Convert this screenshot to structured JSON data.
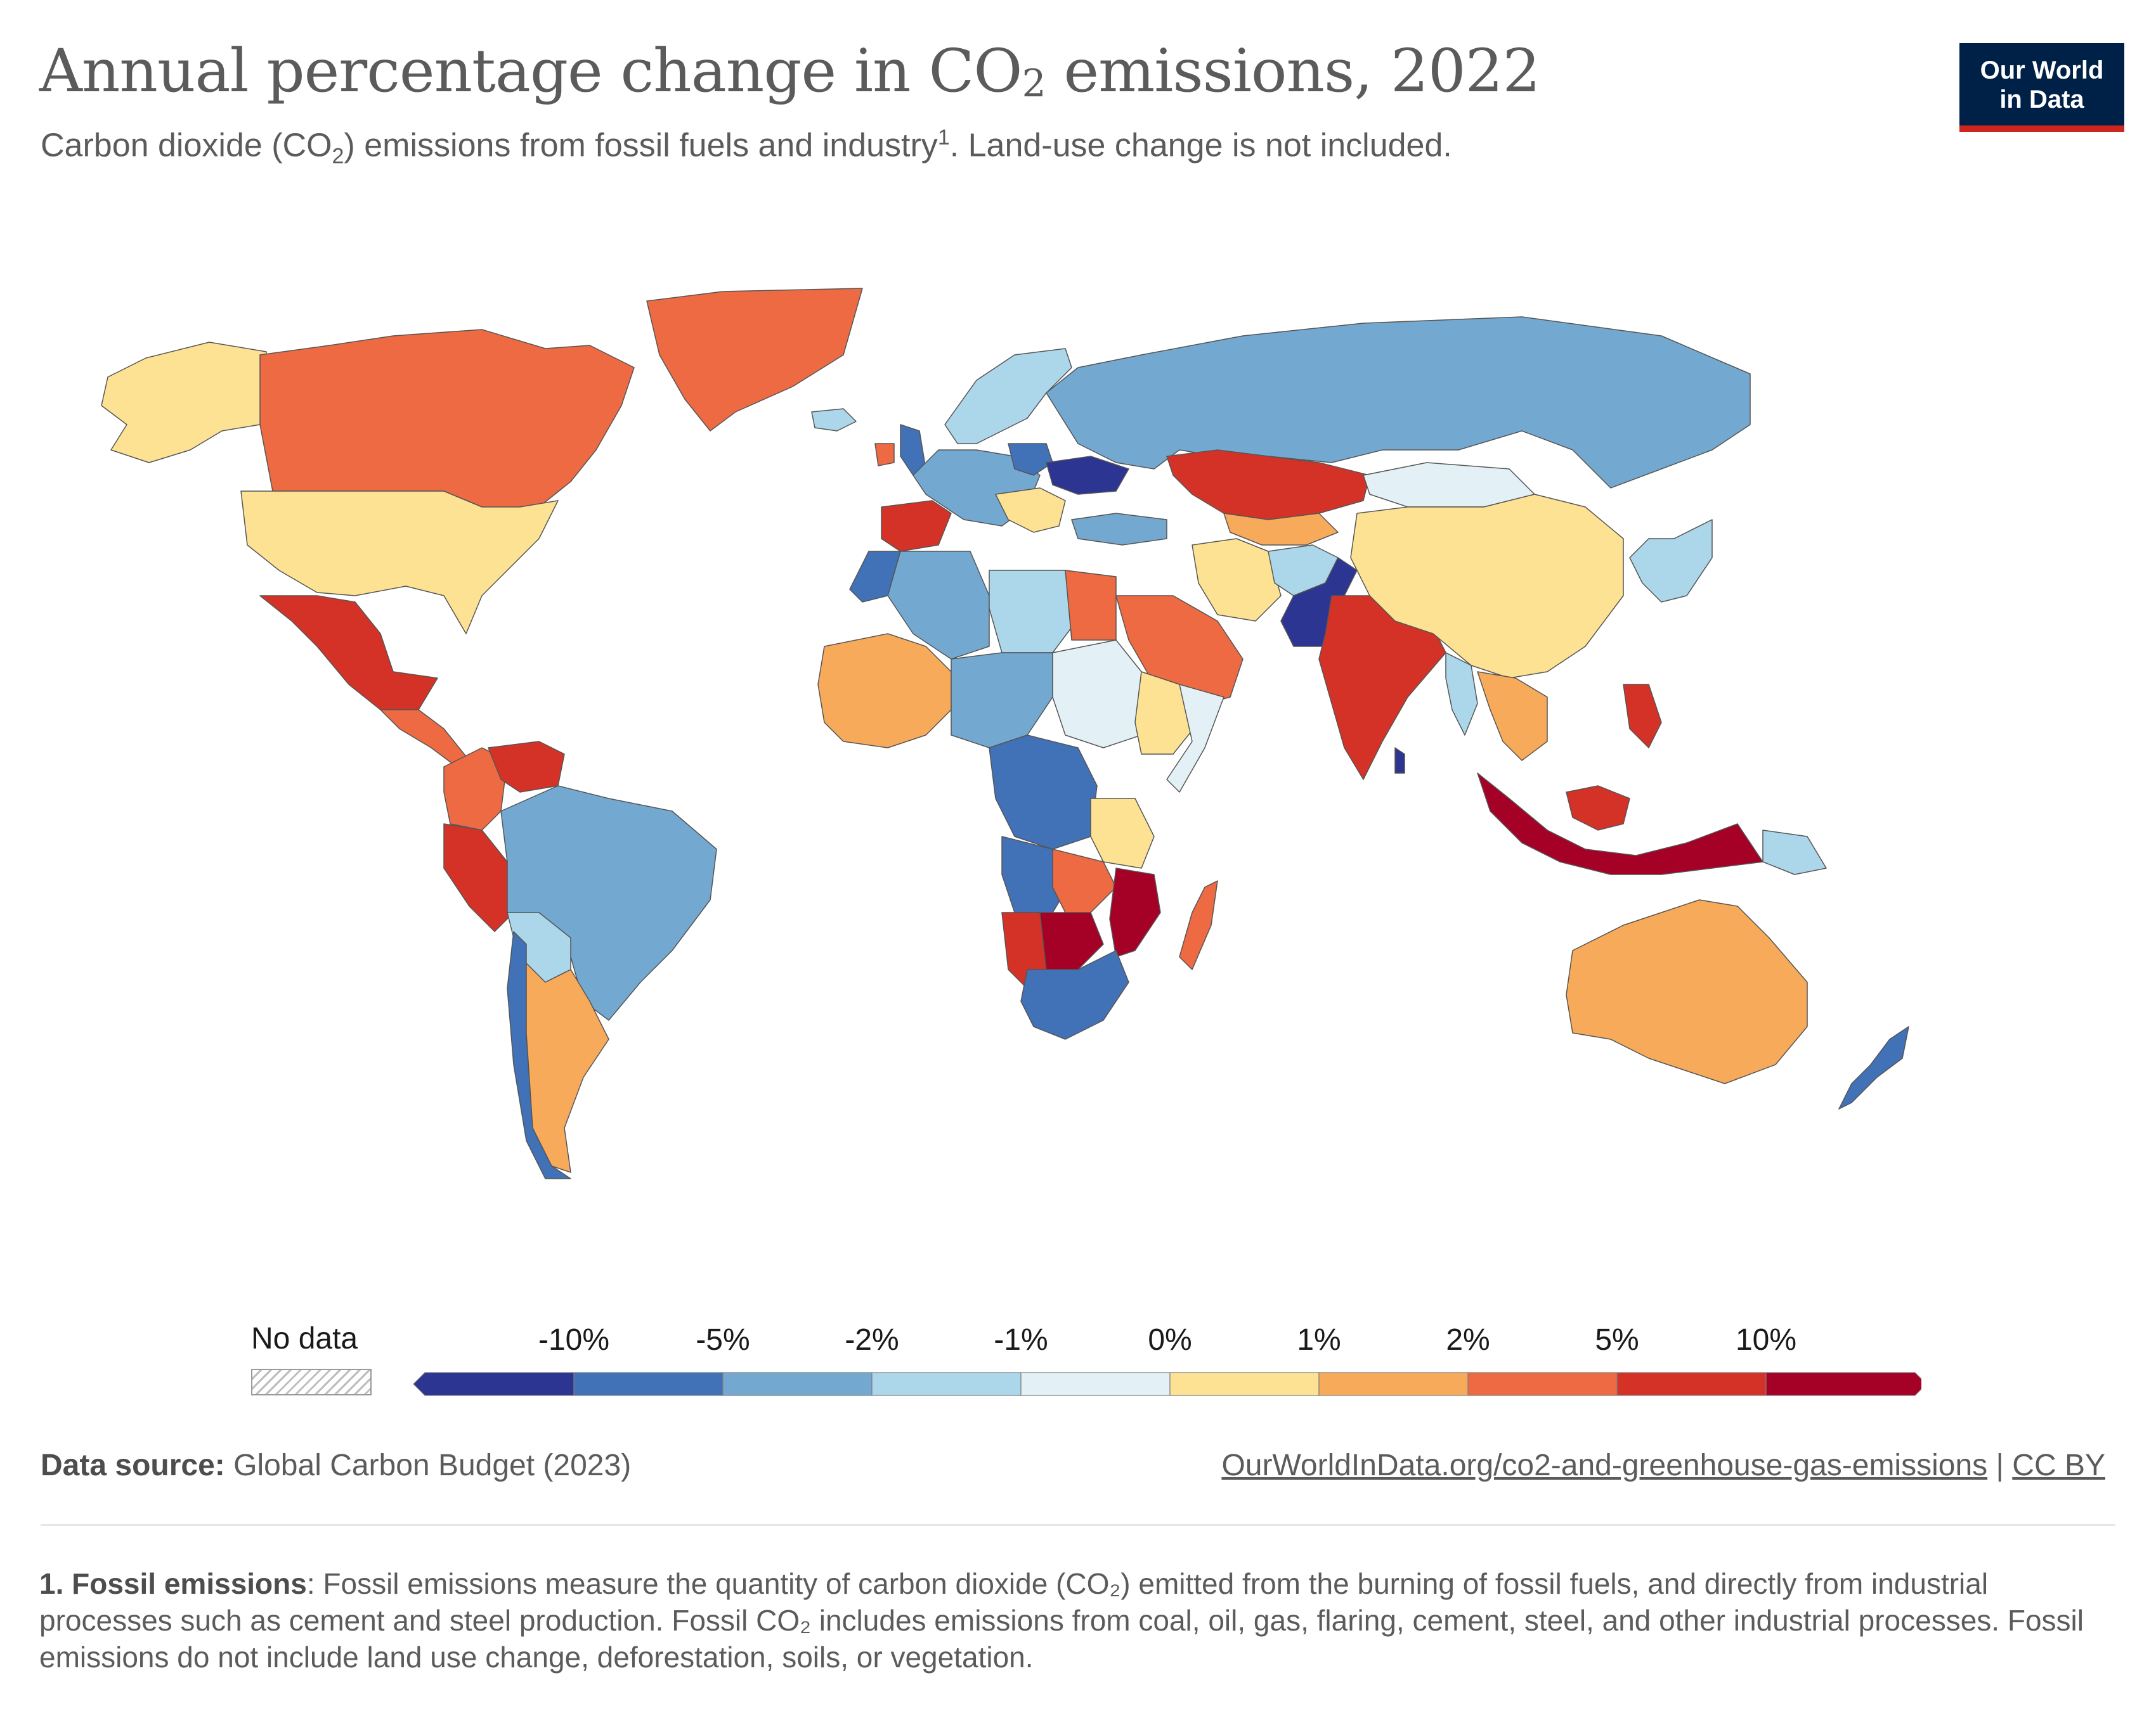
{
  "header": {
    "title_main": "Annual percentage change in CO",
    "title_sub": "2",
    "title_end": " emissions, 2022",
    "subtitle_a": "Carbon dioxide (CO",
    "subtitle_sub": "2",
    "subtitle_b": ") emissions from fossil fuels and industry",
    "subtitle_sup": "1",
    "subtitle_c": ". Land-use change is not included."
  },
  "logo": {
    "line1": "Our World",
    "line2": "in Data"
  },
  "colors": {
    "ocean": "#ffffff",
    "border": "#555555",
    "scale": [
      "#2c3592",
      "#4171b7",
      "#73a9d1",
      "#acd6ea",
      "#e3f1f7",
      "#fde293",
      "#f8aa5b",
      "#ee6a43",
      "#d53227",
      "#a50026"
    ]
  },
  "legend": {
    "no_data_label": "No data",
    "ticks": [
      "-10%",
      "-5%",
      "-2%",
      "-1%",
      "0%",
      "1%",
      "2%",
      "5%",
      "10%"
    ]
  },
  "footer": {
    "source_label": "Data source:",
    "source_text": " Global Carbon Budget (2023)",
    "link_text": "OurWorldInData.org/co2-and-greenhouse-gas-emissions",
    "separator": " | ",
    "license": "CC BY"
  },
  "footnote": {
    "label": "1. Fossil emissions",
    "text": ": Fossil emissions measure the quantity of carbon dioxide (CO₂) emitted from the burning of fossil fuels, and directly from industrial processes such as cement and steel production. Fossil CO₂ includes emissions from coal, oil, gas, flaring, cement, steel, and other industrial processes. Fossil emissions do not include land use change, deforestation, soils, or vegetation."
  },
  "regions": [
    {
      "name": "Alaska",
      "bin": 5
    },
    {
      "name": "Canada",
      "bin": 7
    },
    {
      "name": "Greenland",
      "bin": 7
    },
    {
      "name": "United States",
      "bin": 5
    },
    {
      "name": "Mexico",
      "bin": 8
    },
    {
      "name": "Central America",
      "bin": 7
    },
    {
      "name": "Colombia",
      "bin": 7
    },
    {
      "name": "Venezuela",
      "bin": 8
    },
    {
      "name": "Peru",
      "bin": 8
    },
    {
      "name": "Brazil",
      "bin": 2
    },
    {
      "name": "Bolivia",
      "bin": 3
    },
    {
      "name": "Chile",
      "bin": 1
    },
    {
      "name": "Argentina",
      "bin": 6
    },
    {
      "name": "Iceland",
      "bin": 3
    },
    {
      "name": "United Kingdom",
      "bin": 1
    },
    {
      "name": "Ireland",
      "bin": 7
    },
    {
      "name": "Scandinavia",
      "bin": 3
    },
    {
      "name": "Western Europe",
      "bin": 2
    },
    {
      "name": "Spain",
      "bin": 8
    },
    {
      "name": "Poland",
      "bin": 1
    },
    {
      "name": "Ukraine",
      "bin": 0
    },
    {
      "name": "Balkans",
      "bin": 5
    },
    {
      "name": "Russia",
      "bin": 2
    },
    {
      "name": "Turkey",
      "bin": 2
    },
    {
      "name": "Kazakhstan",
      "bin": 8
    },
    {
      "name": "Central Asia",
      "bin": 6
    },
    {
      "name": "Mongolia",
      "bin": 4
    },
    {
      "name": "Iran",
      "bin": 5
    },
    {
      "name": "Arabian Peninsula",
      "bin": 7
    },
    {
      "name": "Afghanistan",
      "bin": 3
    },
    {
      "name": "Pakistan",
      "bin": 0
    },
    {
      "name": "India",
      "bin": 8
    },
    {
      "name": "China",
      "bin": 5
    },
    {
      "name": "Korea and Japan",
      "bin": 3
    },
    {
      "name": "Myanmar",
      "bin": 3
    },
    {
      "name": "Mainland Southeast Asia",
      "bin": 6
    },
    {
      "name": "Philippines",
      "bin": 8
    },
    {
      "name": "Malaysia and Borneo",
      "bin": 8
    },
    {
      "name": "Indonesia",
      "bin": 9
    },
    {
      "name": "Papua New Guinea",
      "bin": 3
    },
    {
      "name": "Australia",
      "bin": 6
    },
    {
      "name": "New Zealand",
      "bin": 1
    },
    {
      "name": "Morocco",
      "bin": 1
    },
    {
      "name": "Algeria",
      "bin": 2
    },
    {
      "name": "Libya",
      "bin": 3
    },
    {
      "name": "Egypt",
      "bin": 7
    },
    {
      "name": "Sudan",
      "bin": 4
    },
    {
      "name": "West Africa",
      "bin": 6
    },
    {
      "name": "Chad",
      "bin": 2
    },
    {
      "name": "Ethiopia",
      "bin": 5
    },
    {
      "name": "Somalia",
      "bin": 4
    },
    {
      "name": "DR Congo",
      "bin": 1
    },
    {
      "name": "Angola",
      "bin": 1
    },
    {
      "name": "Tanzania",
      "bin": 5
    },
    {
      "name": "Zambia",
      "bin": 7
    },
    {
      "name": "Mozambique",
      "bin": 9
    },
    {
      "name": "Namibia",
      "bin": 8
    },
    {
      "name": "Botswana",
      "bin": 9
    },
    {
      "name": "South Africa",
      "bin": 1
    },
    {
      "name": "Madagascar",
      "bin": 7
    },
    {
      "name": "Sri Lanka",
      "bin": 0
    }
  ]
}
